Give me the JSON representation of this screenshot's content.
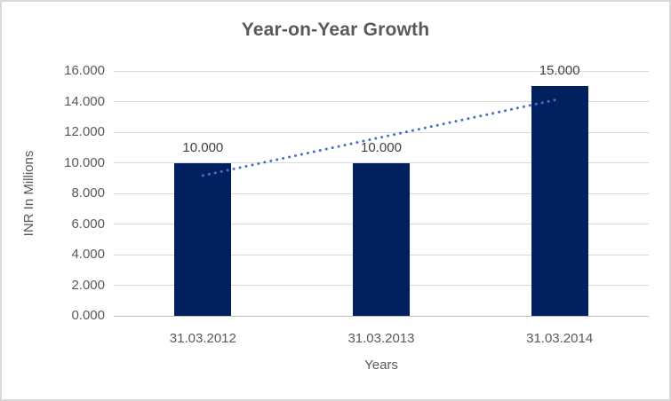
{
  "chart_data": {
    "type": "bar",
    "title": "Year-on-Year Growth",
    "xlabel": "Years",
    "ylabel": "INR In Millions",
    "categories": [
      "31.03.2012",
      "31.03.2013",
      "31.03.2014"
    ],
    "values": [
      10,
      10,
      15
    ],
    "bar_labels": [
      "10.000",
      "10.000",
      "15.000"
    ],
    "ylim": [
      0,
      16
    ],
    "ytick_step": 2,
    "ytick_labels": [
      "0.000",
      "2.000",
      "4.000",
      "6.000",
      "8.000",
      "10.000",
      "12.000",
      "14.000",
      "16.000"
    ],
    "grid": true,
    "legend": "none",
    "trendline": {
      "type": "linear",
      "style": "dotted",
      "values": [
        9.167,
        11.667,
        14.167
      ]
    },
    "colors": {
      "bar": "#002060",
      "trendline": "#4472C4",
      "gridline": "#D9D9D9",
      "axis_line": "#BFBFBF",
      "title_text": "#595959",
      "axis_text": "#595959",
      "data_label_text": "#404040",
      "background": "#FFFFFF",
      "border": "#D9D9D9"
    }
  }
}
